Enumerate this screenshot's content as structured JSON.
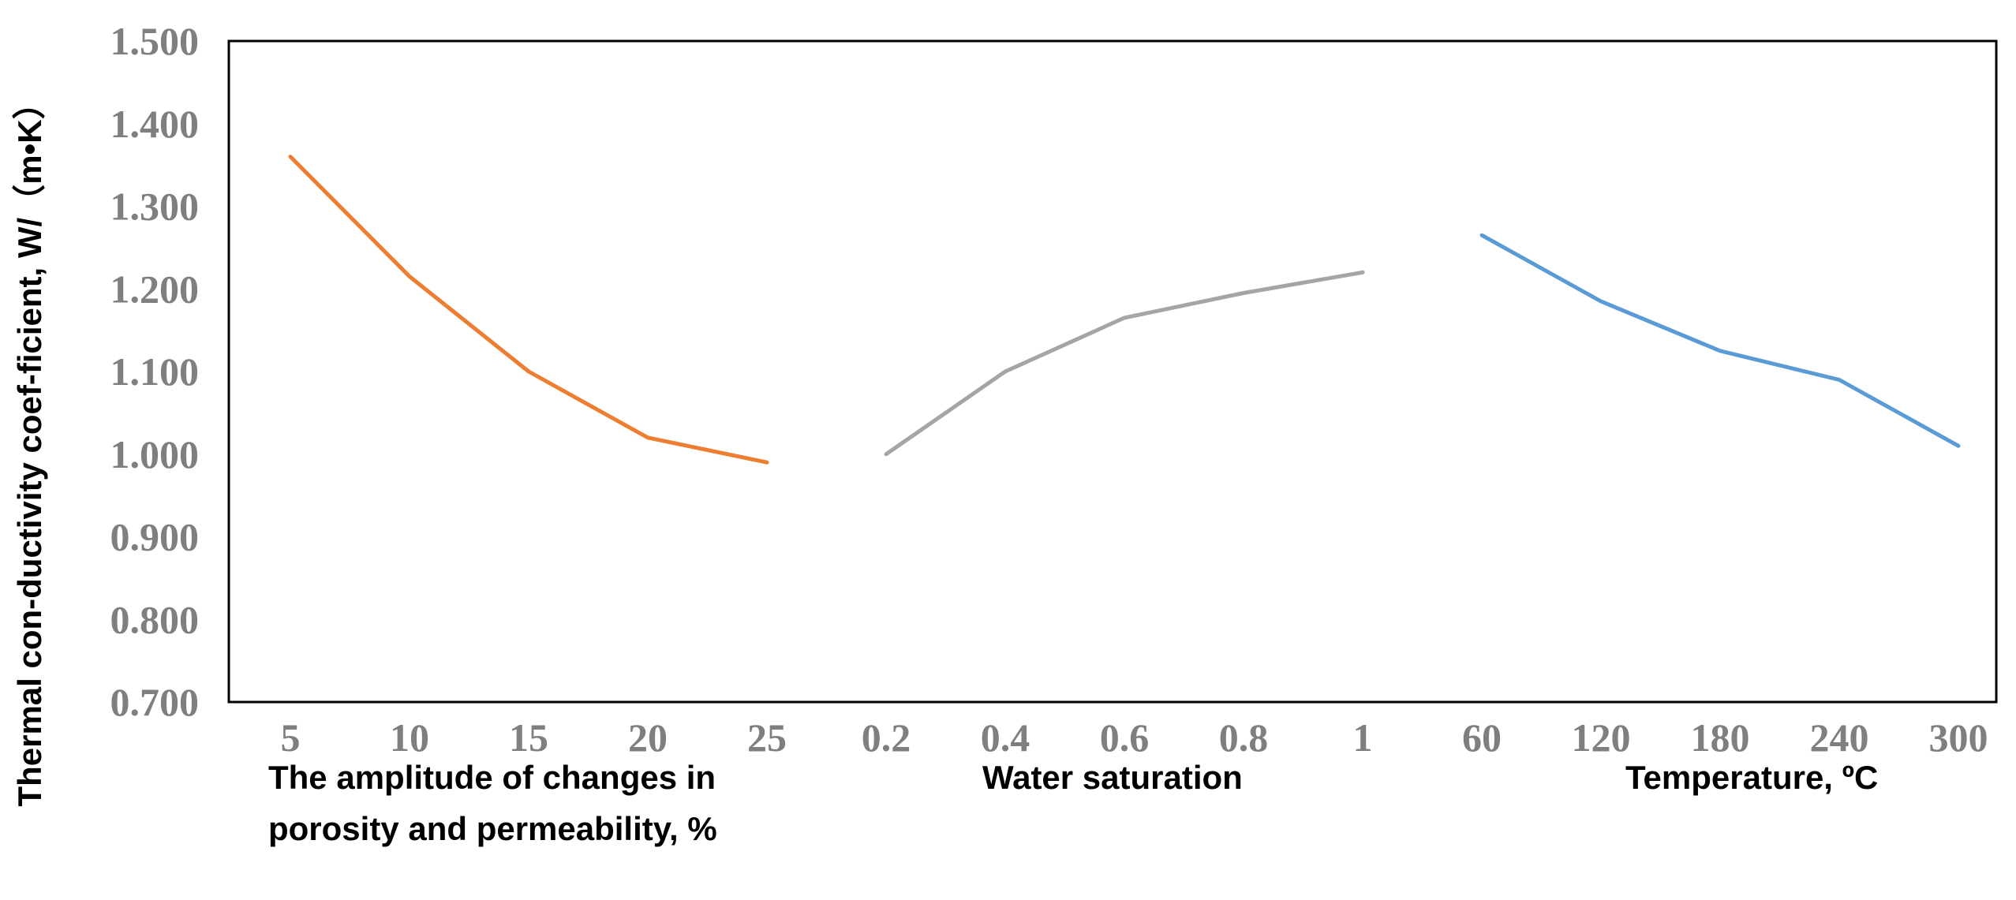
{
  "chart_data": {
    "type": "line",
    "ylabel": "Thermal con-ductivity coef-ficient, W/（m•K）",
    "ylim": [
      0.7,
      1.5
    ],
    "y_ticks": [
      "0.700",
      "0.800",
      "0.900",
      "1.000",
      "1.100",
      "1.200",
      "1.300",
      "1.400",
      "1.500"
    ],
    "grid": false,
    "legend": "none",
    "groups": [
      {
        "xlabel_lines": [
          "The amplitude of changes in",
          "porosity and permeability, %"
        ],
        "categories": [
          "5",
          "10",
          "15",
          "20",
          "25"
        ],
        "values": [
          1.36,
          1.215,
          1.1,
          1.02,
          0.99
        ],
        "color": "#ED7D31"
      },
      {
        "xlabel_lines": [
          "Water saturation"
        ],
        "categories": [
          "0.2",
          "0.4",
          "0.6",
          "0.8",
          "1"
        ],
        "values": [
          1.0,
          1.1,
          1.165,
          1.195,
          1.22
        ],
        "color": "#A5A5A5"
      },
      {
        "xlabel_lines": [
          "Temperature, ºC"
        ],
        "categories": [
          "60",
          "120",
          "180",
          "240",
          "300"
        ],
        "values": [
          1.265,
          1.185,
          1.125,
          1.09,
          1.01
        ],
        "color": "#5B9BD5"
      }
    ]
  }
}
